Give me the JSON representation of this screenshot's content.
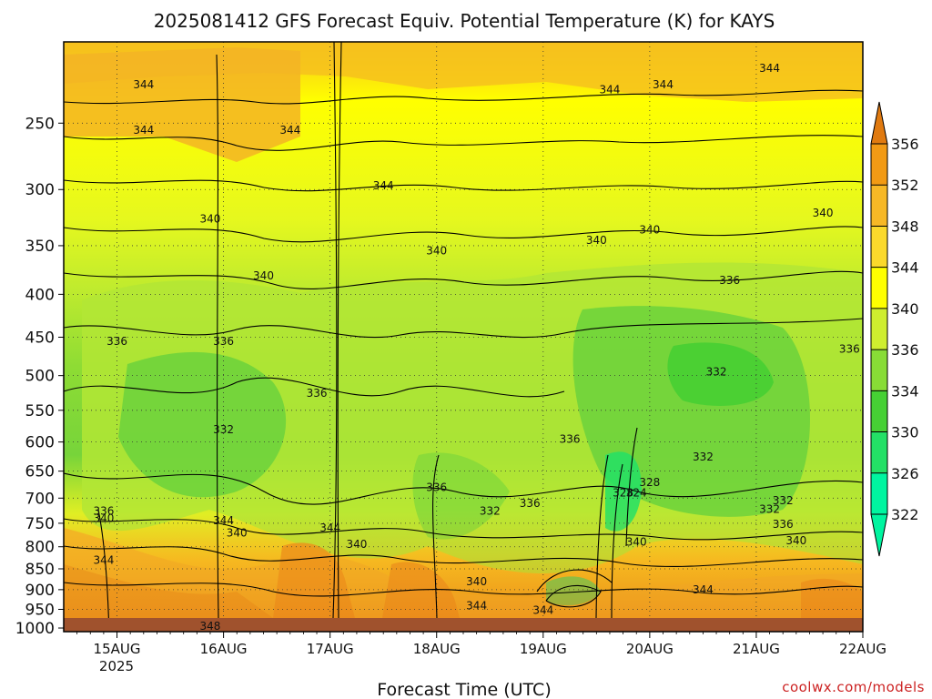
{
  "chart_data": {
    "type": "heatmap",
    "title": "2025081412 GFS Forecast Equiv. Potential Temperature (K) for KAYS",
    "xlabel": "Forecast Time (UTC)",
    "ylabel": "",
    "x_ticks": [
      "15AUG",
      "16AUG",
      "17AUG",
      "18AUG",
      "19AUG",
      "20AUG",
      "21AUG",
      "22AUG"
    ],
    "x_year": "2025",
    "x_range": [
      "2025-08-14T12Z",
      "2025-08-22T00Z"
    ],
    "y_ticks": [
      250,
      300,
      350,
      400,
      450,
      500,
      550,
      600,
      650,
      700,
      750,
      800,
      850,
      900,
      950,
      1000
    ],
    "y_range": [
      200,
      1010
    ],
    "y_reversed": true,
    "y_scale": "log-pressure",
    "grid": true,
    "colorbar": {
      "labels": [
        356,
        352,
        348,
        344,
        340,
        336,
        334,
        330,
        326,
        322
      ],
      "colors": [
        "#e07a10",
        "#f29a14",
        "#f7b826",
        "#fbd92b",
        "#ffff00",
        "#cfee2f",
        "#88dc36",
        "#46d034",
        "#23e066",
        "#00f5a0"
      ]
    },
    "contour_labels": [
      "344",
      "344",
      "344",
      "344",
      "344",
      "344",
      "344",
      "340",
      "340",
      "340",
      "340",
      "340",
      "340",
      "336",
      "336",
      "336",
      "336",
      "336",
      "336",
      "332",
      "332",
      "332",
      "332",
      "332",
      "328",
      "328",
      "324",
      "336",
      "340",
      "344",
      "340",
      "344",
      "340",
      "344",
      "344",
      "340",
      "344",
      "348",
      "336",
      "336",
      "340",
      "344",
      "332",
      "336",
      "340"
    ],
    "contour_values": [
      344,
      344,
      344,
      344,
      344,
      344,
      344,
      340,
      340,
      340,
      340,
      340,
      340,
      336,
      336,
      336,
      336,
      336,
      336,
      332,
      332,
      332,
      332,
      332,
      328,
      328,
      324,
      336,
      340,
      344,
      340,
      344,
      340,
      344,
      344,
      340,
      344,
      348,
      336,
      336,
      340,
      344,
      332,
      336,
      340
    ],
    "contour_times": [
      "15AUG 06Z",
      "15AUG 06Z",
      "16AUG 15Z",
      "17AUG 12Z",
      "19AUG 15Z",
      "20AUG 03Z",
      "21AUG 03Z",
      "15AUG 21Z",
      "16AUG 09Z",
      "19AUG 12Z",
      "20AUG 00Z",
      "21AUG 15Z",
      "18AUG 00Z",
      "15AUG 00Z",
      "16AUG 00Z",
      "16AUG 21Z",
      "19AUG 06Z",
      "20AUG 18Z",
      "21AUG 21Z",
      "16AUG 00Z",
      "20AUG 15Z",
      "20AUG 12Z",
      "21AUG 03Z",
      "18AUG 12Z",
      "19AUG 18Z",
      "20AUG 00Z",
      "19AUG 21Z",
      "14AUG 21Z",
      "14AUG 21Z",
      "14AUG 21Z",
      "16AUG 03Z",
      "16AUG 00Z",
      "17AUG 06Z",
      "17AUG 00Z",
      "18AUG 09Z",
      "18AUG 09Z",
      "19AUG 00Z",
      "15AUG 21Z",
      "18AUG 00Z",
      "18AUG 21Z",
      "19AUG 21Z",
      "20AUG 12Z",
      "21AUG 06Z",
      "21AUG 06Z",
      "21AUG 09Z"
    ],
    "contour_pressures": [
      225,
      255,
      255,
      297,
      228,
      225,
      215,
      325,
      380,
      345,
      335,
      320,
      355,
      455,
      455,
      525,
      595,
      385,
      465,
      580,
      495,
      625,
      722,
      725,
      690,
      670,
      690,
      725,
      740,
      830,
      770,
      745,
      795,
      760,
      940,
      880,
      952,
      995,
      680,
      710,
      790,
      900,
      705,
      752,
      787
    ]
  },
  "credit": "coolwx.com/models"
}
